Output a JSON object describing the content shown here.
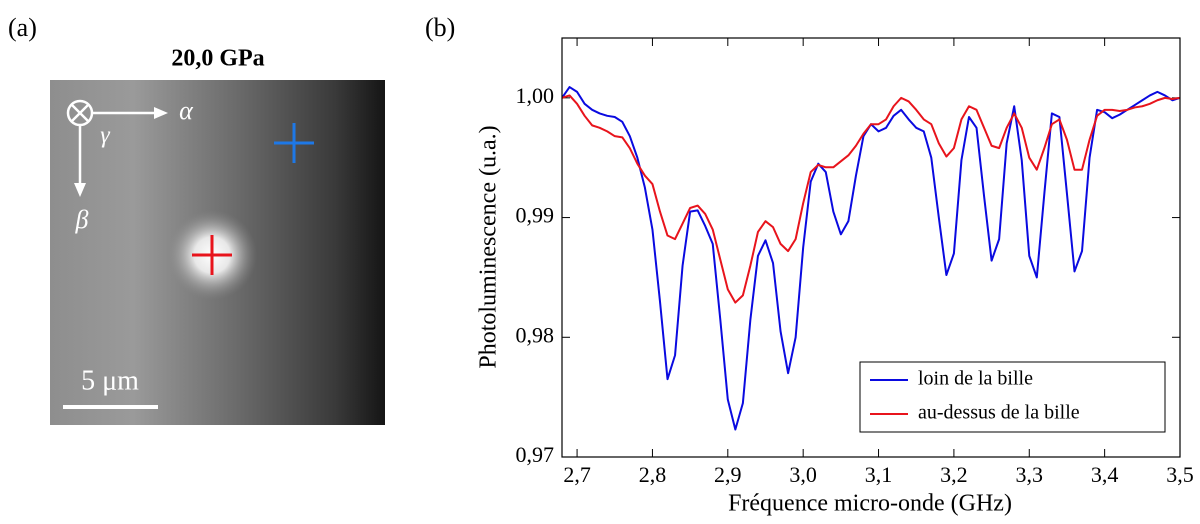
{
  "image_panel": {
    "label": "(a)",
    "title": "20,0 GPa",
    "axis_x": "α",
    "axis_y": "β",
    "axis_z": "γ",
    "scale_bar": "5 μm"
  },
  "chart_data": {
    "type": "line",
    "panel_label": "(b)",
    "x_label": "Fréquence micro-onde (GHz)",
    "y_label": "Photoluminescence (u.a.)",
    "x": [
      2.68,
      2.69,
      2.7,
      2.71,
      2.72,
      2.73,
      2.74,
      2.75,
      2.76,
      2.77,
      2.78,
      2.79,
      2.8,
      2.81,
      2.82,
      2.83,
      2.84,
      2.85,
      2.86,
      2.87,
      2.88,
      2.89,
      2.9,
      2.91,
      2.92,
      2.93,
      2.94,
      2.95,
      2.96,
      2.97,
      2.98,
      2.99,
      3.0,
      3.01,
      3.02,
      3.03,
      3.04,
      3.05,
      3.06,
      3.07,
      3.08,
      3.09,
      3.1,
      3.11,
      3.12,
      3.13,
      3.14,
      3.15,
      3.16,
      3.17,
      3.18,
      3.19,
      3.2,
      3.21,
      3.22,
      3.23,
      3.24,
      3.25,
      3.26,
      3.27,
      3.28,
      3.29,
      3.3,
      3.31,
      3.32,
      3.33,
      3.34,
      3.35,
      3.36,
      3.37,
      3.38,
      3.39,
      3.4,
      3.41,
      3.42,
      3.43,
      3.44,
      3.45,
      3.46,
      3.47,
      3.48,
      3.49,
      3.5
    ],
    "series": [
      {
        "name": "loin de la bille",
        "color": "#0a0ae0",
        "values": [
          1.0,
          1.0009,
          1.0005,
          0.9995,
          0.999,
          0.9987,
          0.9985,
          0.9984,
          0.998,
          0.9968,
          0.995,
          0.9925,
          0.989,
          0.983,
          0.9765,
          0.9785,
          0.986,
          0.9905,
          0.9906,
          0.9893,
          0.9878,
          0.9815,
          0.9748,
          0.9723,
          0.9745,
          0.9815,
          0.9868,
          0.9881,
          0.9862,
          0.9805,
          0.977,
          0.98,
          0.9875,
          0.993,
          0.9945,
          0.9938,
          0.9905,
          0.9886,
          0.9897,
          0.9935,
          0.9968,
          0.9978,
          0.9972,
          0.9975,
          0.9985,
          0.999,
          0.9982,
          0.9975,
          0.9972,
          0.995,
          0.99,
          0.9852,
          0.987,
          0.9948,
          0.9984,
          0.9975,
          0.9918,
          0.9864,
          0.9882,
          0.9962,
          0.9993,
          0.9948,
          0.9868,
          0.985,
          0.992,
          0.9987,
          0.9984,
          0.992,
          0.9855,
          0.9872,
          0.995,
          0.999,
          0.9988,
          0.9983,
          0.9986,
          0.999,
          0.9994,
          0.9998,
          1.0002,
          1.0005,
          1.0002,
          0.9998,
          1.0
        ]
      },
      {
        "name": "au-dessus de la bille",
        "color": "#e8141c",
        "values": [
          1.0,
          1.0002,
          0.9995,
          0.9985,
          0.9977,
          0.9975,
          0.9972,
          0.9968,
          0.9967,
          0.9958,
          0.9945,
          0.9935,
          0.9928,
          0.9905,
          0.9885,
          0.9882,
          0.9895,
          0.9908,
          0.991,
          0.9903,
          0.989,
          0.9865,
          0.984,
          0.9829,
          0.9835,
          0.986,
          0.9888,
          0.9897,
          0.9892,
          0.9878,
          0.9872,
          0.9882,
          0.9912,
          0.9938,
          0.9944,
          0.9942,
          0.9942,
          0.9947,
          0.9952,
          0.996,
          0.997,
          0.9978,
          0.9978,
          0.9982,
          0.9993,
          1.0,
          0.9997,
          0.999,
          0.9982,
          0.9978,
          0.9962,
          0.9951,
          0.9958,
          0.9982,
          0.9993,
          0.999,
          0.9975,
          0.996,
          0.9958,
          0.9975,
          0.9987,
          0.9975,
          0.995,
          0.994,
          0.9958,
          0.9978,
          0.9982,
          0.9965,
          0.994,
          0.994,
          0.9965,
          0.9985,
          0.999,
          0.999,
          0.9989,
          0.999,
          0.9992,
          0.9993,
          0.9995,
          0.9998,
          1.0,
          0.9999,
          1.0
        ]
      }
    ],
    "xlim": [
      2.68,
      3.5
    ],
    "ylim": [
      0.97,
      1.005
    ],
    "xticks": [
      {
        "value": 2.7,
        "label": "2,7"
      },
      {
        "value": 2.8,
        "label": "2,8"
      },
      {
        "value": 2.9,
        "label": "2,9"
      },
      {
        "value": 3.0,
        "label": "3,0"
      },
      {
        "value": 3.1,
        "label": "3,1"
      },
      {
        "value": 3.2,
        "label": "3,2"
      },
      {
        "value": 3.3,
        "label": "3,3"
      },
      {
        "value": 3.4,
        "label": "3,4"
      },
      {
        "value": 3.5,
        "label": "3,5"
      }
    ],
    "yticks": [
      {
        "value": 0.97,
        "label": "0,97"
      },
      {
        "value": 0.98,
        "label": "0,98"
      },
      {
        "value": 0.99,
        "label": "0,99"
      },
      {
        "value": 1.0,
        "label": "1,00"
      }
    ],
    "legend": "lower right"
  }
}
